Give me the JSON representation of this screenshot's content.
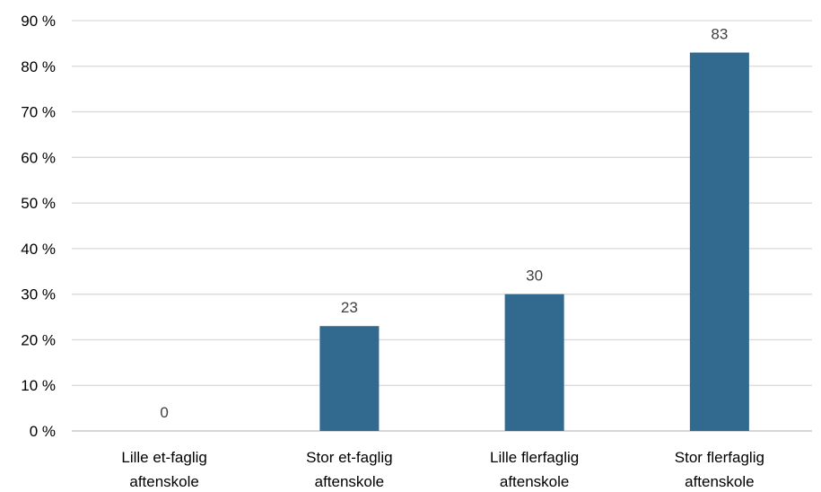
{
  "chart_data": {
    "type": "bar",
    "categories": [
      [
        "Lille et-faglig",
        "aftenskole"
      ],
      [
        "Stor et-faglig",
        "aftenskole"
      ],
      [
        "Lille flerfaglig",
        "aftenskole"
      ],
      [
        "Stor flerfaglig",
        "aftenskole"
      ]
    ],
    "values": [
      0,
      23,
      30,
      83
    ],
    "data_labels": [
      "0",
      "23",
      "30",
      "83"
    ],
    "ylim": [
      0,
      90
    ],
    "y_ticks": [
      0,
      10,
      20,
      30,
      40,
      50,
      60,
      70,
      80,
      90
    ],
    "y_tick_labels": [
      "0 %",
      "10 %",
      "20 %",
      "30 %",
      "40 %",
      "50 %",
      "60 %",
      "70 %",
      "80 %",
      "90 %"
    ],
    "grid": true,
    "legend": false,
    "colors": {
      "bar": "#31698f",
      "grid": "#d9d9d9",
      "axis": "#bfbfbf",
      "data_label": "#404040"
    }
  }
}
